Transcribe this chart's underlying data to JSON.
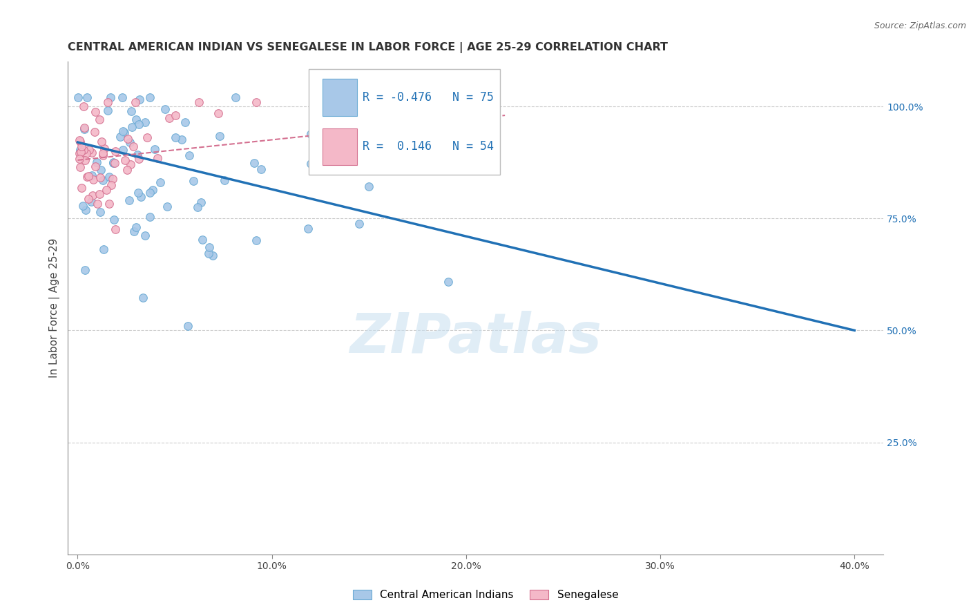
{
  "title": "CENTRAL AMERICAN INDIAN VS SENEGALESE IN LABOR FORCE | AGE 25-29 CORRELATION CHART",
  "source": "Source: ZipAtlas.com",
  "ylabel": "In Labor Force | Age 25-29",
  "xlabel_ticks": [
    "0.0%",
    "10.0%",
    "20.0%",
    "30.0%",
    "40.0%"
  ],
  "xlabel_vals": [
    0.0,
    0.1,
    0.2,
    0.3,
    0.4
  ],
  "ylabel_ticks": [
    "25.0%",
    "50.0%",
    "75.0%",
    "100.0%"
  ],
  "ylabel_vals": [
    0.25,
    0.5,
    0.75,
    1.0
  ],
  "xlim": [
    0.0,
    0.4
  ],
  "ylim": [
    0.0,
    1.08
  ],
  "blue_R": -0.476,
  "blue_N": 75,
  "pink_R": 0.146,
  "pink_N": 54,
  "blue_color": "#a8c8e8",
  "blue_edge_color": "#6aaad4",
  "blue_line_color": "#2171b5",
  "pink_color": "#f4b8c8",
  "pink_edge_color": "#d47090",
  "pink_line_color": "#e05878",
  "watermark": "ZIPatlas",
  "legend_label_blue": "Central American Indians",
  "legend_label_pink": "Senegalese",
  "blue_line_x0": 0.0,
  "blue_line_y0": 0.92,
  "blue_line_x1": 0.4,
  "blue_line_y1": 0.5,
  "pink_line_x0": 0.0,
  "pink_line_y0": 0.88,
  "pink_line_x1": 0.22,
  "pink_line_y1": 0.98
}
